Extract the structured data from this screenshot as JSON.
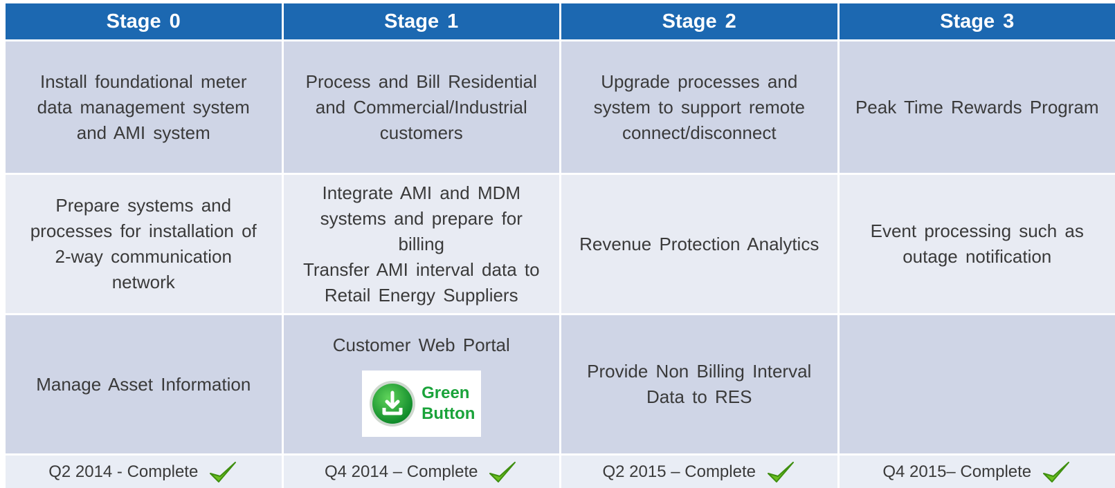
{
  "header": {
    "columns": [
      "Stage 0",
      "Stage 1",
      "Stage 2",
      "Stage 3"
    ]
  },
  "table": {
    "rows": [
      [
        [
          "Install foundational meter data management system and AMI system"
        ],
        [
          "Process and Bill Residential and Commercial/Industrial customers"
        ],
        [
          "Upgrade processes and system to support remote connect/disconnect"
        ],
        [
          "Peak Time Rewards Program"
        ]
      ],
      [
        [
          "Prepare systems and processes for installation of 2-way communication network"
        ],
        [
          "Integrate AMI and MDM systems and prepare for billing",
          "Transfer AMI interval data to Retail Energy Suppliers"
        ],
        [
          "Revenue Protection Analytics"
        ],
        [
          "Event processing such as outage notification"
        ]
      ],
      [
        [
          "Manage Asset Information"
        ],
        [
          "Customer Web Portal"
        ],
        [
          "Provide Non Billing Interval Data to RES"
        ],
        []
      ]
    ]
  },
  "green_button": {
    "line1": "Green",
    "line2": "Button"
  },
  "footer": [
    "Q2 2014 - Complete",
    "Q4 2014 – Complete",
    "Q2 2015 – Complete",
    "Q4 2015– Complete"
  ]
}
